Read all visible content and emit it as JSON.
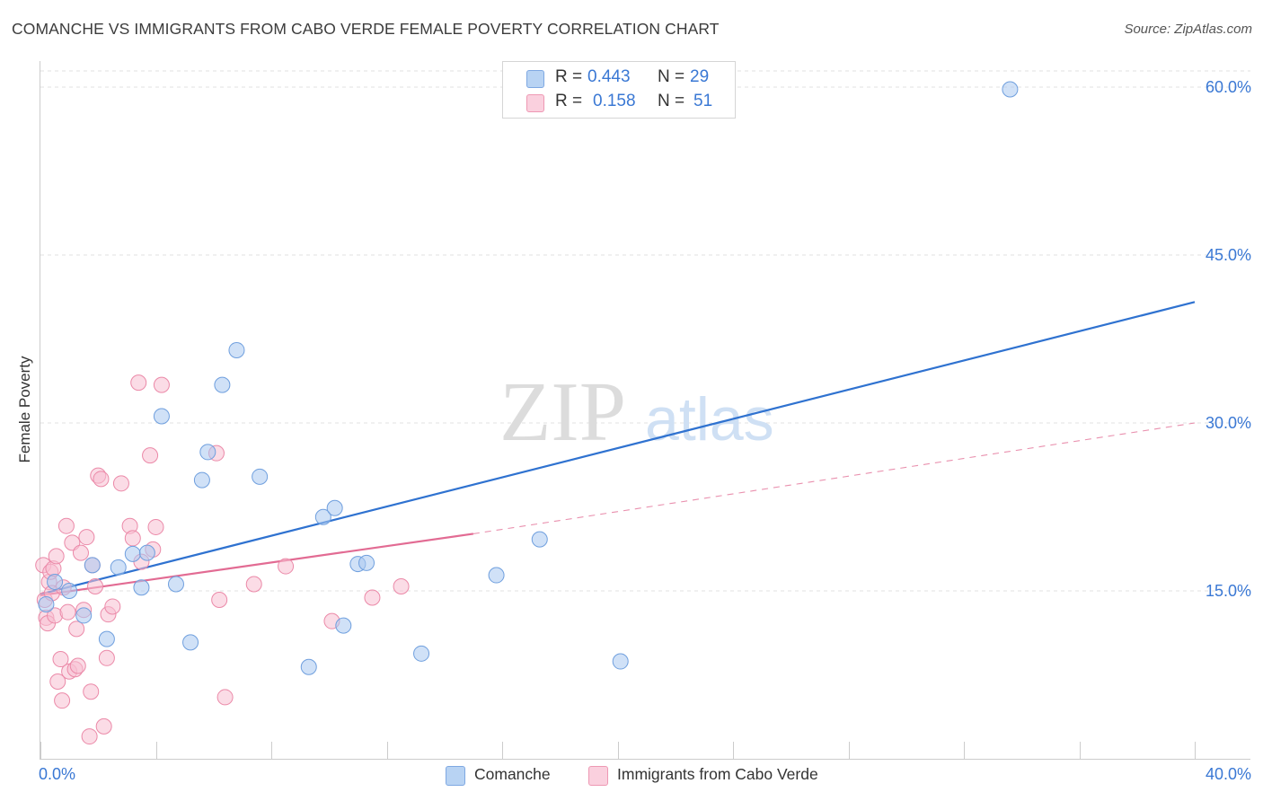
{
  "chart_data": {
    "type": "scatter",
    "title": "COMANCHE VS IMMIGRANTS FROM CABO VERDE FEMALE POVERTY CORRELATION CHART",
    "source": "Source: ZipAtlas.com",
    "ylabel": "Female Poverty",
    "xlabel": "",
    "xlim": [
      0,
      40
    ],
    "ylim": [
      0,
      60
    ],
    "x_tick_labels": {
      "min": "0.0%",
      "max": "40.0%"
    },
    "y_tick_labels": [
      {
        "value": 15,
        "label": "15.0%"
      },
      {
        "value": 30,
        "label": "30.0%"
      },
      {
        "value": 45,
        "label": "45.0%"
      },
      {
        "value": 60,
        "label": "60.0%"
      }
    ],
    "watermark": {
      "zip": "ZIP",
      "atlas": "atlas"
    },
    "legend": [
      {
        "r_label": "R =",
        "r_value": "0.443",
        "n_label": "N =",
        "n_value": "29"
      },
      {
        "r_label": "R =",
        "r_value": "0.158",
        "n_label": "N =",
        "n_value": "51"
      }
    ],
    "series": [
      {
        "name": "Comanche",
        "color": "#a9c8f0",
        "stroke": "#6f9fde",
        "trend_color": "#2f72d0",
        "trend": {
          "x0": 0,
          "y0": 14.7,
          "x1": 40,
          "y1": 40.8,
          "dashed_to": null
        },
        "points": [
          [
            0.2,
            13.8
          ],
          [
            0.5,
            15.8
          ],
          [
            1.0,
            15.0
          ],
          [
            1.5,
            12.8
          ],
          [
            1.8,
            17.3
          ],
          [
            2.3,
            10.7
          ],
          [
            2.7,
            17.1
          ],
          [
            3.2,
            18.3
          ],
          [
            3.5,
            15.3
          ],
          [
            3.7,
            18.4
          ],
          [
            4.2,
            30.6
          ],
          [
            4.7,
            15.6
          ],
          [
            5.2,
            10.4
          ],
          [
            5.6,
            24.9
          ],
          [
            5.8,
            27.4
          ],
          [
            6.3,
            33.4
          ],
          [
            6.8,
            36.5
          ],
          [
            7.6,
            25.2
          ],
          [
            9.3,
            8.2
          ],
          [
            9.8,
            21.6
          ],
          [
            10.2,
            22.4
          ],
          [
            10.5,
            11.9
          ],
          [
            11.0,
            17.4
          ],
          [
            11.3,
            17.5
          ],
          [
            13.2,
            9.4
          ],
          [
            15.8,
            16.4
          ],
          [
            17.3,
            19.6
          ],
          [
            20.1,
            8.7
          ],
          [
            33.6,
            59.8
          ]
        ]
      },
      {
        "name": "Immigrants from Cabo Verde",
        "color": "#f7c0d2",
        "stroke": "#eb89a8",
        "trend_color": "#e26b93",
        "trend": {
          "x0": 0,
          "y0": 14.6,
          "x1": 15.0,
          "y1": 20.1,
          "dash_x1": 40,
          "dash_y1": 30.0
        },
        "points": [
          [
            0.1,
            17.3
          ],
          [
            0.15,
            14.2
          ],
          [
            0.2,
            12.6
          ],
          [
            0.25,
            12.1
          ],
          [
            0.3,
            15.8
          ],
          [
            0.35,
            16.7
          ],
          [
            0.4,
            14.8
          ],
          [
            0.45,
            17.0
          ],
          [
            0.5,
            12.8
          ],
          [
            0.55,
            18.1
          ],
          [
            0.6,
            6.9
          ],
          [
            0.7,
            8.9
          ],
          [
            0.75,
            5.2
          ],
          [
            0.8,
            15.3
          ],
          [
            0.9,
            20.8
          ],
          [
            0.95,
            13.1
          ],
          [
            1.0,
            7.8
          ],
          [
            1.1,
            19.3
          ],
          [
            1.2,
            8.0
          ],
          [
            1.25,
            11.6
          ],
          [
            1.3,
            8.3
          ],
          [
            1.4,
            18.4
          ],
          [
            1.5,
            13.3
          ],
          [
            1.6,
            19.8
          ],
          [
            1.7,
            2.0
          ],
          [
            1.75,
            6.0
          ],
          [
            1.8,
            17.3
          ],
          [
            1.9,
            15.4
          ],
          [
            2.0,
            25.3
          ],
          [
            2.1,
            25.0
          ],
          [
            2.2,
            2.9
          ],
          [
            2.3,
            9.0
          ],
          [
            2.35,
            12.9
          ],
          [
            2.5,
            13.6
          ],
          [
            2.8,
            24.6
          ],
          [
            3.1,
            20.8
          ],
          [
            3.2,
            19.7
          ],
          [
            3.4,
            33.6
          ],
          [
            3.5,
            17.6
          ],
          [
            3.8,
            27.1
          ],
          [
            3.9,
            18.7
          ],
          [
            4.0,
            20.7
          ],
          [
            4.2,
            33.4
          ],
          [
            6.1,
            27.3
          ],
          [
            6.2,
            14.2
          ],
          [
            6.4,
            5.5
          ],
          [
            7.4,
            15.6
          ],
          [
            8.5,
            17.2
          ],
          [
            10.1,
            12.3
          ],
          [
            11.5,
            14.4
          ],
          [
            12.5,
            15.4
          ]
        ]
      }
    ]
  }
}
